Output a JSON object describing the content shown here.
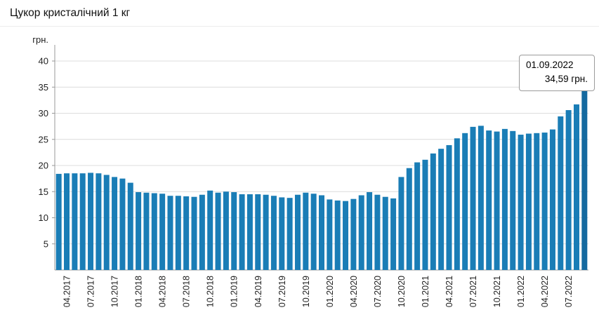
{
  "header": {
    "title": "Цукор кристалічний 1 кг"
  },
  "tooltip": {
    "date": "01.09.2022",
    "value": "34,59 грн."
  },
  "chart_data": {
    "type": "bar",
    "title": "Цукор кристалічний 1 кг",
    "xlabel": "",
    "ylabel": "грн.",
    "ylim": [
      0,
      40
    ],
    "yticks": [
      5,
      10,
      15,
      20,
      25,
      30,
      35,
      40
    ],
    "grid": true,
    "legend": false,
    "bar_color": "#1a7db6",
    "bar_highlight_color": "#14699f",
    "x": [
      "03.2017",
      "04.2017",
      "05.2017",
      "06.2017",
      "07.2017",
      "08.2017",
      "09.2017",
      "10.2017",
      "11.2017",
      "12.2017",
      "01.2018",
      "02.2018",
      "03.2018",
      "04.2018",
      "05.2018",
      "06.2018",
      "07.2018",
      "08.2018",
      "09.2018",
      "10.2018",
      "11.2018",
      "12.2018",
      "01.2019",
      "02.2019",
      "03.2019",
      "04.2019",
      "05.2019",
      "06.2019",
      "07.2019",
      "08.2019",
      "09.2019",
      "10.2019",
      "11.2019",
      "12.2019",
      "01.2020",
      "02.2020",
      "03.2020",
      "04.2020",
      "05.2020",
      "06.2020",
      "07.2020",
      "08.2020",
      "09.2020",
      "10.2020",
      "11.2020",
      "12.2020",
      "01.2021",
      "02.2021",
      "03.2021",
      "04.2021",
      "05.2021",
      "06.2021",
      "07.2021",
      "08.2021",
      "09.2021",
      "10.2021",
      "11.2021",
      "12.2021",
      "01.2022",
      "02.2022",
      "03.2022",
      "04.2022",
      "05.2022",
      "06.2022",
      "07.2022",
      "08.2022",
      "09.2022"
    ],
    "values": [
      18.4,
      18.5,
      18.5,
      18.5,
      18.6,
      18.5,
      18.2,
      17.8,
      17.5,
      16.7,
      14.9,
      14.8,
      14.7,
      14.6,
      14.2,
      14.2,
      14.1,
      14.0,
      14.4,
      15.2,
      14.8,
      15.0,
      14.9,
      14.5,
      14.5,
      14.5,
      14.4,
      14.2,
      13.9,
      13.8,
      14.4,
      14.8,
      14.6,
      14.3,
      13.5,
      13.3,
      13.2,
      13.6,
      14.3,
      14.9,
      14.4,
      14.0,
      13.7,
      17.8,
      19.5,
      20.6,
      21.1,
      22.3,
      23.2,
      23.9,
      25.2,
      26.2,
      27.4,
      27.6,
      26.7,
      26.5,
      27.0,
      26.6,
      25.9,
      26.1,
      26.2,
      26.3,
      26.9,
      29.4,
      30.6,
      31.7,
      34.59
    ],
    "xtick_labels": [
      "04.2017",
      "07.2017",
      "10.2017",
      "01.2018",
      "04.2018",
      "07.2018",
      "10.2018",
      "01.2019",
      "04.2019",
      "07.2019",
      "10.2019",
      "01.2020",
      "04.2020",
      "07.2020",
      "10.2020",
      "01.2021",
      "04.2021",
      "07.2021",
      "10.2021",
      "01.2022",
      "04.2022",
      "07.2022"
    ],
    "annotation": {
      "target_x": "09.2022",
      "date_label": "01.09.2022",
      "value": 34.59,
      "value_label": "34,59 грн."
    }
  }
}
